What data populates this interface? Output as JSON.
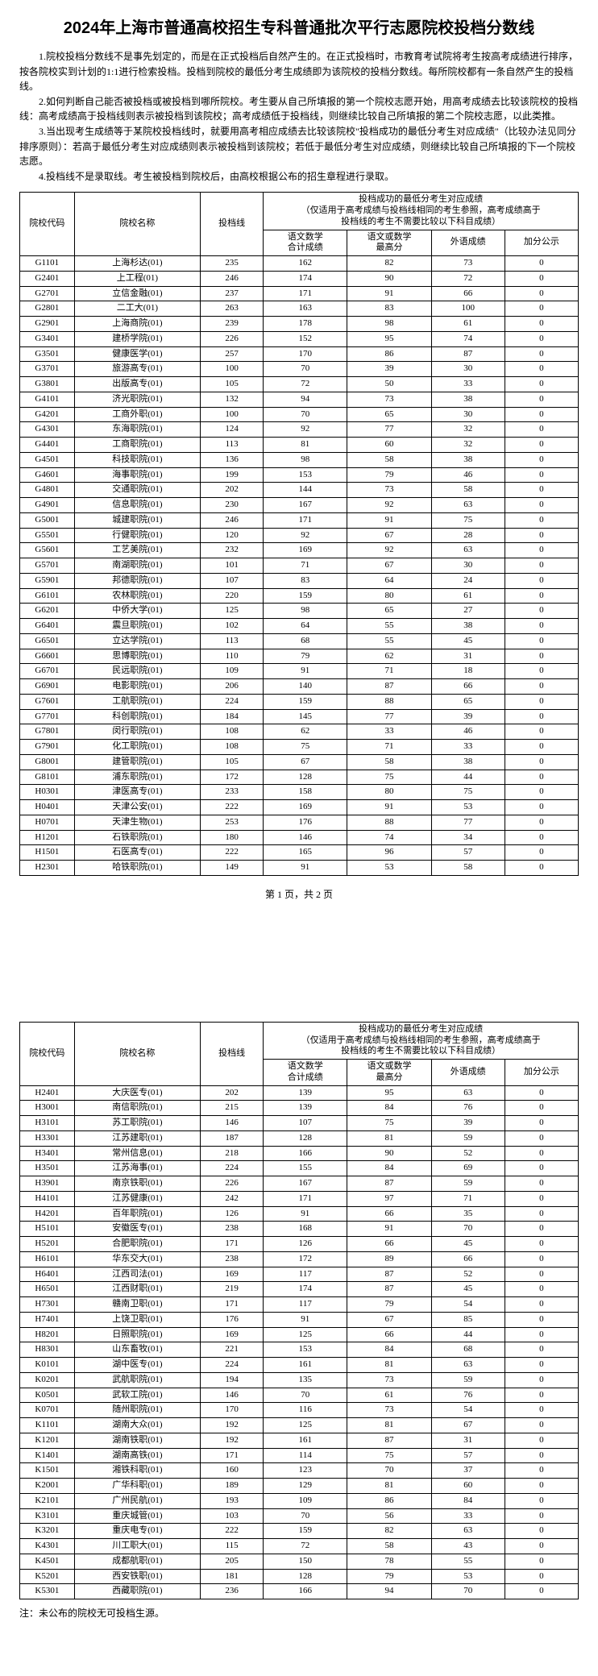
{
  "title": "2024年上海市普通高校招生专科普通批次平行志愿院校投档分数线",
  "intro": [
    "1.院校投档分数线不是事先划定的，而是在正式投档后自然产生的。在正式投档时，市教育考试院将考生按高考成绩进行排序，按各院校实到计划的1:1进行检索投档。投档到院校的最低分考生成绩即为该院校的投档分数线。每所院校都有一条自然产生的投档线。",
    "2.如何判断自己能否被投档或被投档到哪所院校。考生要从自己所填报的第一个院校志愿开始，用高考成绩去比较该院校的投档线：高考成绩高于投档线则表示被投档到该院校；高考成绩低于投档线，则继续比较自己所填报的第二个院校志愿，以此类推。",
    "3.当出现考生成绩等于某院校投档线时，就要用高考相应成绩去比较该院校\"投档成功的最低分考生对应成绩\"（比较办法见同分排序原则）：若高于最低分考生对应成绩则表示被投档到该院校；若低于最低分考生对应成绩，则继续比较自己所填报的下一个院校志愿。",
    "4.投档线不是录取线。考生被投档到院校后，由高校根据公布的招生章程进行录取。"
  ],
  "header": {
    "code": "院校代码",
    "name": "院校名称",
    "score": "投档线",
    "group_title": "投档成功的最低分考生对应成绩\n（仅适用于高考成绩与投档线相同的考生参照，高考成绩高于\n投档线的考生不需要比较以下科目成绩）",
    "chn": "语文数学\n合计成绩",
    "max": "语文或数学\n最高分",
    "for": "外语成绩",
    "bonus": "加分公示"
  },
  "pager": "第 1 页，共 2 页",
  "note": "注：未公布的院校无可投档生源。",
  "rows1": [
    [
      "G1101",
      "上海杉达(01)",
      "235",
      "162",
      "82",
      "73",
      "0"
    ],
    [
      "G2401",
      "上工程(01)",
      "246",
      "174",
      "90",
      "72",
      "0"
    ],
    [
      "G2701",
      "立信金融(01)",
      "237",
      "171",
      "91",
      "66",
      "0"
    ],
    [
      "G2801",
      "二工大(01)",
      "263",
      "163",
      "83",
      "100",
      "0"
    ],
    [
      "G2901",
      "上海商院(01)",
      "239",
      "178",
      "98",
      "61",
      "0"
    ],
    [
      "G3401",
      "建桥学院(01)",
      "226",
      "152",
      "95",
      "74",
      "0"
    ],
    [
      "G3501",
      "健康医学(01)",
      "257",
      "170",
      "86",
      "87",
      "0"
    ],
    [
      "G3701",
      "旅游高专(01)",
      "100",
      "70",
      "39",
      "30",
      "0"
    ],
    [
      "G3801",
      "出版高专(01)",
      "105",
      "72",
      "50",
      "33",
      "0"
    ],
    [
      "G4101",
      "济光职院(01)",
      "132",
      "94",
      "73",
      "38",
      "0"
    ],
    [
      "G4201",
      "工商外职(01)",
      "100",
      "70",
      "65",
      "30",
      "0"
    ],
    [
      "G4301",
      "东海职院(01)",
      "124",
      "92",
      "77",
      "32",
      "0"
    ],
    [
      "G4401",
      "工商职院(01)",
      "113",
      "81",
      "60",
      "32",
      "0"
    ],
    [
      "G4501",
      "科技职院(01)",
      "136",
      "98",
      "58",
      "38",
      "0"
    ],
    [
      "G4601",
      "海事职院(01)",
      "199",
      "153",
      "79",
      "46",
      "0"
    ],
    [
      "G4801",
      "交通职院(01)",
      "202",
      "144",
      "73",
      "58",
      "0"
    ],
    [
      "G4901",
      "信息职院(01)",
      "230",
      "167",
      "92",
      "63",
      "0"
    ],
    [
      "G5001",
      "城建职院(01)",
      "246",
      "171",
      "91",
      "75",
      "0"
    ],
    [
      "G5501",
      "行健职院(01)",
      "120",
      "92",
      "67",
      "28",
      "0"
    ],
    [
      "G5601",
      "工艺美院(01)",
      "232",
      "169",
      "92",
      "63",
      "0"
    ],
    [
      "G5701",
      "南湖职院(01)",
      "101",
      "71",
      "67",
      "30",
      "0"
    ],
    [
      "G5901",
      "邦德职院(01)",
      "107",
      "83",
      "64",
      "24",
      "0"
    ],
    [
      "G6101",
      "农林职院(01)",
      "220",
      "159",
      "80",
      "61",
      "0"
    ],
    [
      "G6201",
      "中侨大学(01)",
      "125",
      "98",
      "65",
      "27",
      "0"
    ],
    [
      "G6401",
      "震旦职院(01)",
      "102",
      "64",
      "55",
      "38",
      "0"
    ],
    [
      "G6501",
      "立达学院(01)",
      "113",
      "68",
      "55",
      "45",
      "0"
    ],
    [
      "G6601",
      "思博职院(01)",
      "110",
      "79",
      "62",
      "31",
      "0"
    ],
    [
      "G6701",
      "民远职院(01)",
      "109",
      "91",
      "71",
      "18",
      "0"
    ],
    [
      "G6901",
      "电影职院(01)",
      "206",
      "140",
      "87",
      "66",
      "0"
    ],
    [
      "G7601",
      "工航职院(01)",
      "224",
      "159",
      "88",
      "65",
      "0"
    ],
    [
      "G7701",
      "科创职院(01)",
      "184",
      "145",
      "77",
      "39",
      "0"
    ],
    [
      "G7801",
      "闵行职院(01)",
      "108",
      "62",
      "33",
      "46",
      "0"
    ],
    [
      "G7901",
      "化工职院(01)",
      "108",
      "75",
      "71",
      "33",
      "0"
    ],
    [
      "G8001",
      "建管职院(01)",
      "105",
      "67",
      "58",
      "38",
      "0"
    ],
    [
      "G8101",
      "浦东职院(01)",
      "172",
      "128",
      "75",
      "44",
      "0"
    ],
    [
      "H0301",
      "津医高专(01)",
      "233",
      "158",
      "80",
      "75",
      "0"
    ],
    [
      "H0401",
      "天津公安(01)",
      "222",
      "169",
      "91",
      "53",
      "0"
    ],
    [
      "H0701",
      "天津生物(01)",
      "253",
      "176",
      "88",
      "77",
      "0"
    ],
    [
      "H1201",
      "石铁职院(01)",
      "180",
      "146",
      "74",
      "34",
      "0"
    ],
    [
      "H1501",
      "石医高专(01)",
      "222",
      "165",
      "96",
      "57",
      "0"
    ],
    [
      "H2301",
      "哈铁职院(01)",
      "149",
      "91",
      "53",
      "58",
      "0"
    ]
  ],
  "rows2": [
    [
      "H2401",
      "大庆医专(01)",
      "202",
      "139",
      "95",
      "63",
      "0"
    ],
    [
      "H3001",
      "南信职院(01)",
      "215",
      "139",
      "84",
      "76",
      "0"
    ],
    [
      "H3101",
      "苏工职院(01)",
      "146",
      "107",
      "75",
      "39",
      "0"
    ],
    [
      "H3301",
      "江苏建职(01)",
      "187",
      "128",
      "81",
      "59",
      "0"
    ],
    [
      "H3401",
      "常州信息(01)",
      "218",
      "166",
      "90",
      "52",
      "0"
    ],
    [
      "H3501",
      "江苏海事(01)",
      "224",
      "155",
      "84",
      "69",
      "0"
    ],
    [
      "H3901",
      "南京铁职(01)",
      "226",
      "167",
      "87",
      "59",
      "0"
    ],
    [
      "H4101",
      "江苏健康(01)",
      "242",
      "171",
      "97",
      "71",
      "0"
    ],
    [
      "H4201",
      "百年职院(01)",
      "126",
      "91",
      "66",
      "35",
      "0"
    ],
    [
      "H5101",
      "安徽医专(01)",
      "238",
      "168",
      "91",
      "70",
      "0"
    ],
    [
      "H5201",
      "合肥职院(01)",
      "171",
      "126",
      "66",
      "45",
      "0"
    ],
    [
      "H6101",
      "华东交大(01)",
      "238",
      "172",
      "89",
      "66",
      "0"
    ],
    [
      "H6401",
      "江西司法(01)",
      "169",
      "117",
      "87",
      "52",
      "0"
    ],
    [
      "H6501",
      "江西财职(01)",
      "219",
      "174",
      "87",
      "45",
      "0"
    ],
    [
      "H7301",
      "赣南卫职(01)",
      "171",
      "117",
      "79",
      "54",
      "0"
    ],
    [
      "H7401",
      "上饶卫职(01)",
      "176",
      "91",
      "67",
      "85",
      "0"
    ],
    [
      "H8201",
      "日照职院(01)",
      "169",
      "125",
      "66",
      "44",
      "0"
    ],
    [
      "H8301",
      "山东畜牧(01)",
      "221",
      "153",
      "84",
      "68",
      "0"
    ],
    [
      "K0101",
      "湖中医专(01)",
      "224",
      "161",
      "81",
      "63",
      "0"
    ],
    [
      "K0201",
      "武航职院(01)",
      "194",
      "135",
      "73",
      "59",
      "0"
    ],
    [
      "K0501",
      "武软工院(01)",
      "146",
      "70",
      "61",
      "76",
      "0"
    ],
    [
      "K0701",
      "随州职院(01)",
      "170",
      "116",
      "73",
      "54",
      "0"
    ],
    [
      "K1101",
      "湖南大众(01)",
      "192",
      "125",
      "81",
      "67",
      "0"
    ],
    [
      "K1201",
      "湖南铁职(01)",
      "192",
      "161",
      "87",
      "31",
      "0"
    ],
    [
      "K1401",
      "湖南高铁(01)",
      "171",
      "114",
      "75",
      "57",
      "0"
    ],
    [
      "K1501",
      "湘铁科职(01)",
      "160",
      "123",
      "70",
      "37",
      "0"
    ],
    [
      "K2001",
      "广华科职(01)",
      "189",
      "129",
      "81",
      "60",
      "0"
    ],
    [
      "K2101",
      "广州民航(01)",
      "193",
      "109",
      "86",
      "84",
      "0"
    ],
    [
      "K3101",
      "重庆城管(01)",
      "103",
      "70",
      "56",
      "33",
      "0"
    ],
    [
      "K3201",
      "重庆电专(01)",
      "222",
      "159",
      "82",
      "63",
      "0"
    ],
    [
      "K4301",
      "川工职大(01)",
      "115",
      "72",
      "58",
      "43",
      "0"
    ],
    [
      "K4501",
      "成都航职(01)",
      "205",
      "150",
      "78",
      "55",
      "0"
    ],
    [
      "K5201",
      "西安铁职(01)",
      "181",
      "128",
      "79",
      "53",
      "0"
    ],
    [
      "K5301",
      "西藏职院(01)",
      "236",
      "166",
      "94",
      "70",
      "0"
    ]
  ]
}
